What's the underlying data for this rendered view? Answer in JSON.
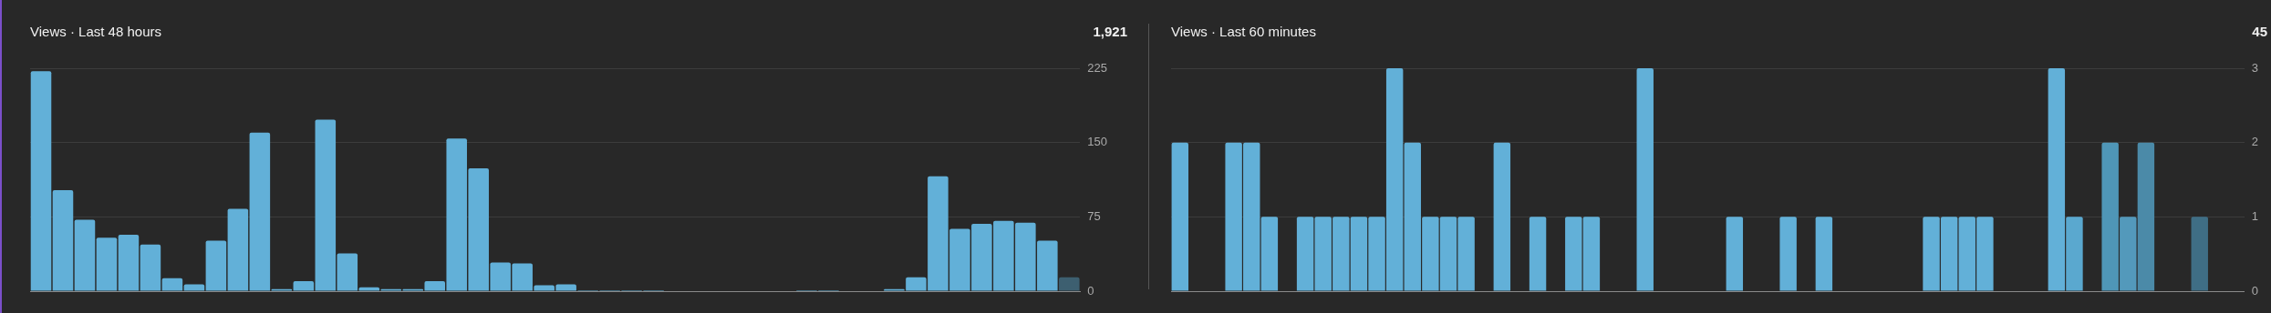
{
  "chart_data": [
    {
      "type": "bar",
      "title": "Views · Last 48 hours",
      "annotations": [
        "1,921"
      ],
      "categories": [
        null,
        null,
        null,
        null,
        null,
        null,
        null,
        null,
        null,
        null,
        null,
        null,
        null,
        null,
        null,
        null,
        null,
        null,
        null,
        null,
        null,
        null,
        null,
        null,
        null,
        null,
        null,
        null,
        null,
        null,
        null,
        null,
        null,
        null,
        null,
        null,
        null,
        null,
        null,
        null,
        null,
        null,
        null,
        null,
        null,
        null,
        null,
        null
      ],
      "values": [
        222,
        102,
        72,
        54,
        57,
        47,
        13,
        7,
        51,
        83,
        160,
        2,
        10,
        173,
        38,
        4,
        2,
        2,
        10,
        154,
        124,
        29,
        28,
        6,
        7,
        1,
        1,
        1,
        1,
        0,
        0,
        0,
        0,
        0,
        0,
        1,
        1,
        0,
        0,
        2,
        14,
        116,
        63,
        68,
        71,
        69,
        51,
        14
      ],
      "colors": [
        "#62b0d8",
        "#62b0d8",
        "#62b0d8",
        "#62b0d8",
        "#62b0d8",
        "#62b0d8",
        "#62b0d8",
        "#62b0d8",
        "#62b0d8",
        "#62b0d8",
        "#62b0d8",
        "#62b0d8",
        "#62b0d8",
        "#62b0d8",
        "#62b0d8",
        "#62b0d8",
        "#62b0d8",
        "#62b0d8",
        "#62b0d8",
        "#62b0d8",
        "#62b0d8",
        "#62b0d8",
        "#62b0d8",
        "#62b0d8",
        "#62b0d8",
        "#62b0d8",
        "#62b0d8",
        "#62b0d8",
        "#62b0d8",
        "#62b0d8",
        "#62b0d8",
        "#62b0d8",
        "#62b0d8",
        "#62b0d8",
        "#62b0d8",
        "#62b0d8",
        "#62b0d8",
        "#62b0d8",
        "#62b0d8",
        "#62b0d8",
        "#62b0d8",
        "#62b0d8",
        "#62b0d8",
        "#62b0d8",
        "#62b0d8",
        "#62b0d8",
        "#62b0d8",
        "#3d5f70"
      ],
      "ylim": [
        0,
        225
      ],
      "yticks": [
        0,
        75,
        150,
        225
      ],
      "grid": "y",
      "tick_labels": "y",
      "legend": false
    },
    {
      "type": "bar",
      "title": "Views · Last 60 minutes",
      "annotations": [
        "45"
      ],
      "categories": [
        null,
        null,
        null,
        null,
        null,
        null,
        null,
        null,
        null,
        null,
        null,
        null,
        null,
        null,
        null,
        null,
        null,
        null,
        null,
        null,
        null,
        null,
        null,
        null,
        null,
        null,
        null,
        null,
        null,
        null,
        null,
        null,
        null,
        null,
        null,
        null,
        null,
        null,
        null,
        null,
        null,
        null,
        null,
        null,
        null,
        null,
        null,
        null,
        null,
        null,
        null,
        null,
        null,
        null,
        null,
        null,
        null,
        null,
        null,
        null
      ],
      "values": [
        2,
        0,
        0,
        2,
        2,
        1,
        0,
        1,
        1,
        1,
        1,
        1,
        3,
        2,
        1,
        1,
        1,
        0,
        2,
        0,
        1,
        0,
        1,
        1,
        0,
        0,
        3,
        0,
        0,
        0,
        0,
        1,
        0,
        0,
        1,
        0,
        1,
        0,
        0,
        0,
        0,
        0,
        1,
        1,
        1,
        1,
        0,
        0,
        0,
        3,
        1,
        0,
        2,
        1,
        2,
        0,
        0,
        1,
        0,
        0
      ],
      "colors": [
        "#62b0d8",
        "#62b0d8",
        "#62b0d8",
        "#62b0d8",
        "#62b0d8",
        "#62b0d8",
        "#62b0d8",
        "#62b0d8",
        "#62b0d8",
        "#62b0d8",
        "#62b0d8",
        "#62b0d8",
        "#62b0d8",
        "#62b0d8",
        "#62b0d8",
        "#62b0d8",
        "#62b0d8",
        "#62b0d8",
        "#62b0d8",
        "#62b0d8",
        "#62b0d8",
        "#62b0d8",
        "#62b0d8",
        "#62b0d8",
        "#62b0d8",
        "#62b0d8",
        "#62b0d8",
        "#62b0d8",
        "#62b0d8",
        "#62b0d8",
        "#62b0d8",
        "#62b0d8",
        "#62b0d8",
        "#62b0d8",
        "#62b0d8",
        "#62b0d8",
        "#62b0d8",
        "#62b0d8",
        "#62b0d8",
        "#62b0d8",
        "#62b0d8",
        "#62b0d8",
        "#62b0d8",
        "#62b0d8",
        "#62b0d8",
        "#62b0d8",
        "#62b0d8",
        "#62b0d8",
        "#62b0d8",
        "#62b0d8",
        "#5aa8cf",
        "#62b0d8",
        "#4f96b7",
        "#5399bb",
        "#4b8aa8",
        "#62b0d8",
        "#62b0d8",
        "#3f6e85",
        "#62b0d8",
        "#62b0d8"
      ],
      "ylim": [
        0,
        3
      ],
      "yticks": [
        0,
        1,
        2,
        3
      ],
      "grid": "y",
      "tick_labels": "y",
      "legend": false
    }
  ]
}
